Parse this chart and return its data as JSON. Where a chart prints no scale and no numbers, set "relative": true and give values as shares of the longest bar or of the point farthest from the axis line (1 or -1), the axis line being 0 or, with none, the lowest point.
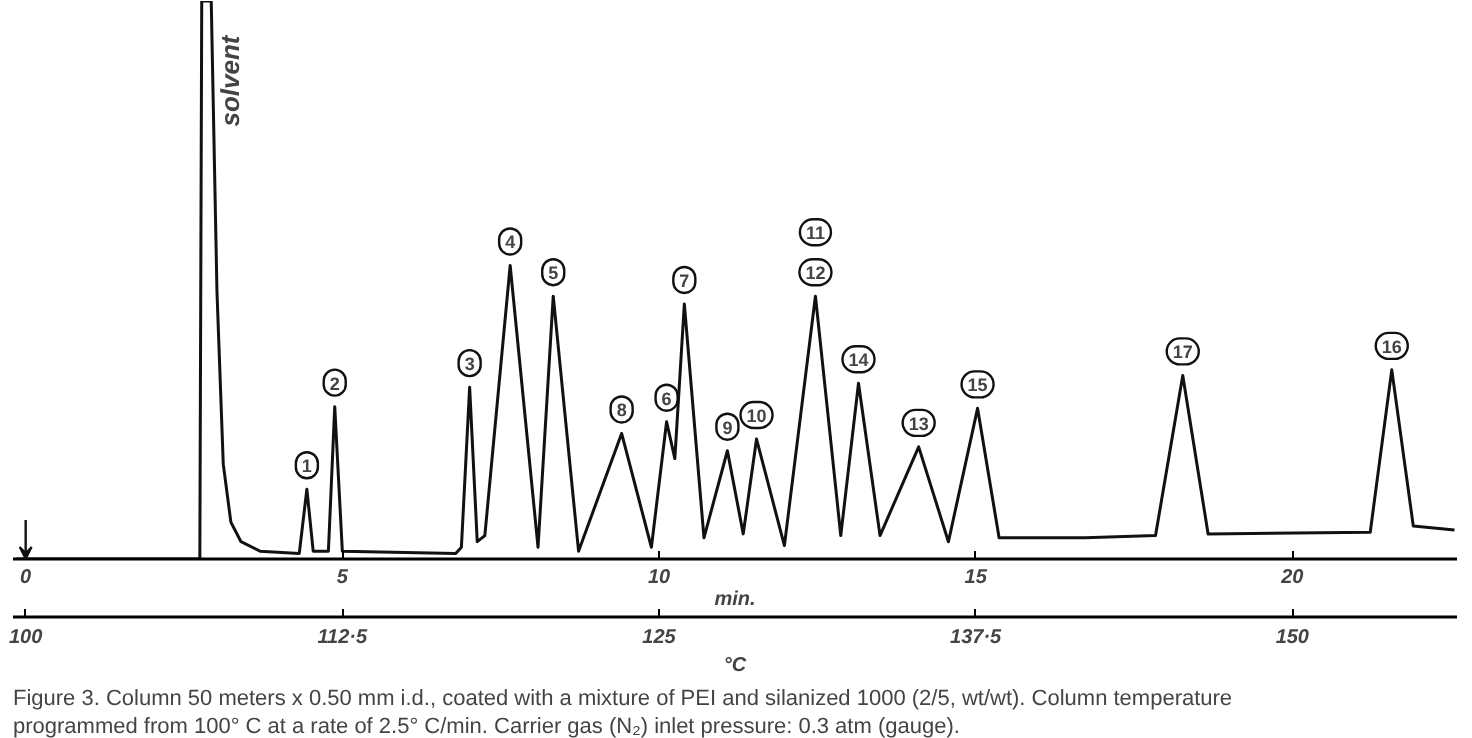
{
  "chart_data": {
    "type": "line",
    "relative": true,
    "xlabel": "min.",
    "x2label": "°C",
    "xlim": [
      -0.2,
      22.6
    ],
    "xticks": [
      0,
      5,
      10,
      15,
      20
    ],
    "x2lim": [
      99.5,
      156.5
    ],
    "x2ticks": [
      100,
      {
        "value": 112.5,
        "label": "112·5"
      },
      125,
      {
        "value": 137.5,
        "label": "137·5"
      },
      150
    ],
    "marker": "none",
    "line_style": "solid",
    "series": [
      {
        "color": "#111111",
        "x": [
          -0.15,
          2.75,
          2.78,
          2.93,
          3.02,
          3.12,
          3.24,
          3.4,
          3.7,
          4.32,
          4.44,
          4.54,
          4.78,
          4.88,
          5.0,
          6.79,
          6.88,
          7.01,
          7.13,
          7.25,
          7.65,
          8.09,
          8.33,
          8.73,
          9.41,
          9.88,
          10.12,
          10.25,
          10.4,
          10.71,
          11.08,
          11.33,
          11.54,
          11.98,
          12.47,
          12.87,
          13.15,
          13.49,
          14.1,
          14.57,
          15.03,
          15.37,
          16.73,
          17.84,
          18.27,
          18.67,
          21.23,
          21.57,
          21.91,
          22.56
        ],
        "values": [
          0,
          0,
          1,
          1,
          0.481,
          0.17,
          0.066,
          0.031,
          0.014,
          0.01,
          0.125,
          0.014,
          0.014,
          0.273,
          0.014,
          0.01,
          0.021,
          0.308,
          0.031,
          0.042,
          0.526,
          0.021,
          0.471,
          0.014,
          0.225,
          0.021,
          0.246,
          0.18,
          0.457,
          0.038,
          0.194,
          0.045,
          0.215,
          0.024,
          0.471,
          0.042,
          0.315,
          0.042,
          0.201,
          0.031,
          0.27,
          0.038,
          0.038,
          0.042,
          0.329,
          0.045,
          0.048,
          0.339,
          0.059,
          0.052
        ]
      }
    ],
    "annotations": [
      "solvent",
      {
        "text": "1",
        "x": 4.44,
        "y": 0.125
      },
      {
        "text": "2",
        "x": 4.88,
        "y": 0.273
      },
      {
        "text": "3",
        "x": 7.01,
        "y": 0.308
      },
      {
        "text": "4",
        "x": 7.65,
        "y": 0.526
      },
      {
        "text": "5",
        "x": 8.33,
        "y": 0.471
      },
      {
        "text": "6",
        "x": 10.12,
        "y": 0.246
      },
      {
        "text": "7",
        "x": 10.4,
        "y": 0.457
      },
      {
        "text": "8",
        "x": 9.41,
        "y": 0.225
      },
      {
        "text": "9",
        "x": 11.08,
        "y": 0.194
      },
      {
        "text": "10",
        "x": 11.54,
        "y": 0.215
      },
      {
        "text": "12",
        "x": 12.47,
        "y": 0.471
      },
      {
        "text": "11",
        "x": 12.47,
        "y": 0.471
      },
      {
        "text": "13",
        "x": 14.1,
        "y": 0.201
      },
      {
        "text": "14",
        "x": 13.15,
        "y": 0.315
      },
      {
        "text": "15",
        "x": 15.03,
        "y": 0.27
      },
      {
        "text": "17",
        "x": 18.27,
        "y": 0.329
      },
      {
        "text": "16",
        "x": 21.57,
        "y": 0.339
      },
      "Figure 3.  Column 50 meters x 0.50 mm i.d., coated with a mixture of PEI and silanized 1000 (2/5, wt/wt). Column temperature programmed from 100° C at a rate of 2.5° C/min. Carrier gas (N₂) inlet pressure: 0.3 atm (gauge)."
    ]
  }
}
